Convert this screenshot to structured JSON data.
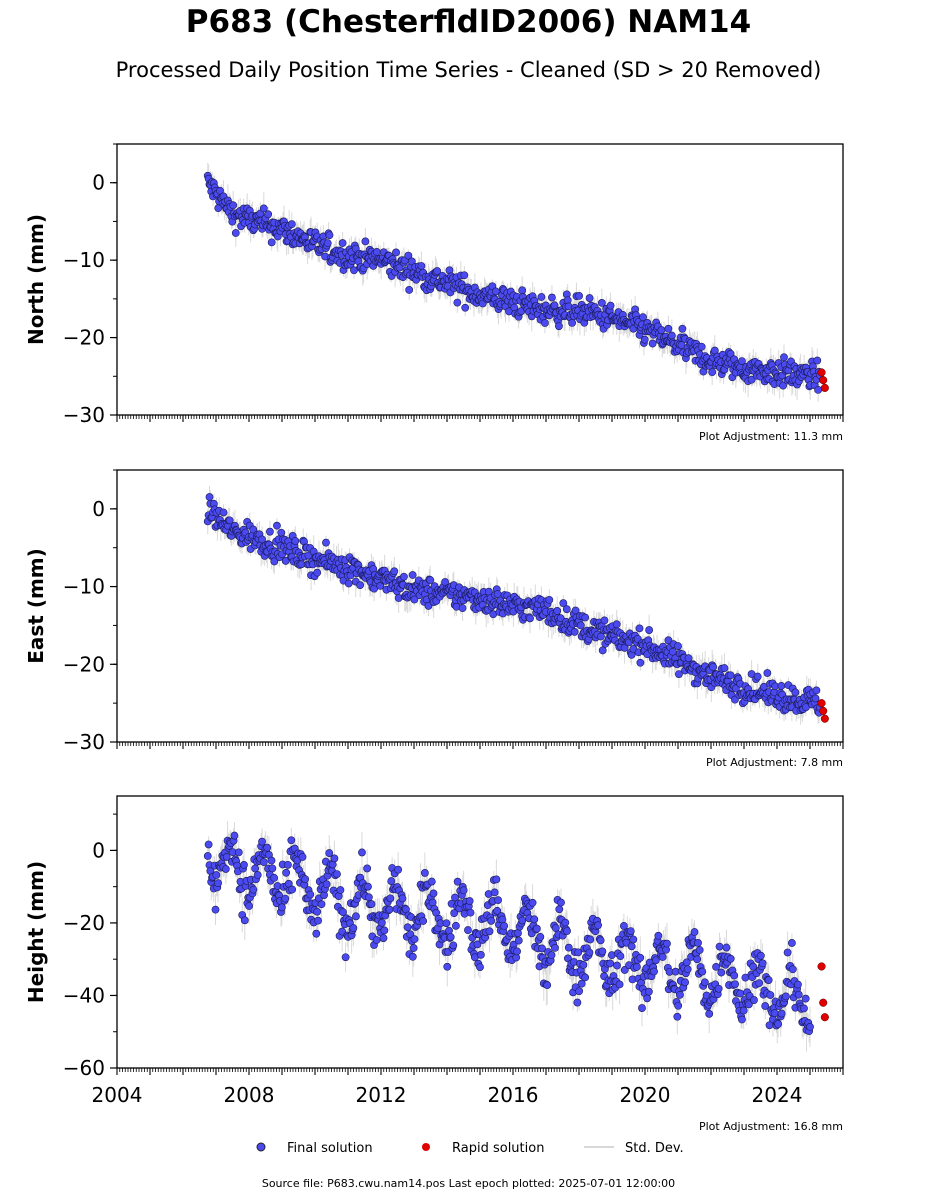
{
  "title": "P683 (ChesterfldID2006) NAM14",
  "subtitle": "Processed Daily Position Time Series - Cleaned (SD > 20 Removed)",
  "legend": {
    "final": "Final solution",
    "rapid": "Rapid solution",
    "std": "Std. Dev."
  },
  "source_text": "Source file: P683.cwu.nam14.pos  Last epoch plotted: 2025-07-01 12:00:00",
  "colors": {
    "final": "#4a4af0",
    "rapid": "#e00000",
    "std": "#999999"
  },
  "chart_data": [
    {
      "type": "scatter",
      "ylabel": "North (mm)",
      "adjustment": "Plot Adjustment: 11.3 mm",
      "xlim": [
        2004,
        2026
      ],
      "ylim": [
        -30,
        5
      ],
      "yticks": [
        0,
        -10,
        -20,
        -30
      ],
      "ytick_labels": [
        "0",
        "−10",
        "−20",
        "−30"
      ],
      "final": {
        "x": [
          2006.75,
          2007.0,
          2007.5,
          2008.0,
          2009.0,
          2010.0,
          2011.0,
          2012.0,
          2013.0,
          2014.0,
          2015.0,
          2016.0,
          2017.0,
          2018.0,
          2019.0,
          2020.0,
          2021.0,
          2022.0,
          2023.0,
          2024.0,
          2025.0,
          2025.3
        ],
        "y": [
          0.0,
          -1.5,
          -4.0,
          -4.8,
          -6.0,
          -8.0,
          -9.5,
          -10.0,
          -11.5,
          -13.0,
          -14.5,
          -15.5,
          -16.5,
          -16.5,
          -17.5,
          -19.0,
          -21.0,
          -23.0,
          -24.0,
          -24.5,
          -25.0,
          -25.0
        ]
      },
      "rapid": {
        "x": [
          2025.35,
          2025.4,
          2025.45
        ],
        "y": [
          -24.5,
          -25.5,
          -26.5
        ]
      }
    },
    {
      "type": "scatter",
      "ylabel": "East (mm)",
      "adjustment": "Plot Adjustment: 7.8 mm",
      "xlim": [
        2004,
        2026
      ],
      "ylim": [
        -30,
        5
      ],
      "yticks": [
        0,
        -10,
        -20,
        -30
      ],
      "ytick_labels": [
        "0",
        "−10",
        "−20",
        "−30"
      ],
      "final": {
        "x": [
          2006.75,
          2007.0,
          2007.5,
          2008.0,
          2009.0,
          2010.0,
          2011.0,
          2012.0,
          2013.0,
          2014.0,
          2015.0,
          2016.0,
          2017.0,
          2018.0,
          2019.0,
          2020.0,
          2021.0,
          2022.0,
          2023.0,
          2024.0,
          2025.0,
          2025.3
        ],
        "y": [
          0.0,
          -1.0,
          -3.0,
          -3.5,
          -5.0,
          -6.5,
          -7.5,
          -9.0,
          -10.5,
          -11.0,
          -11.5,
          -12.5,
          -13.0,
          -15.0,
          -16.5,
          -17.5,
          -19.5,
          -21.5,
          -23.0,
          -24.0,
          -24.8,
          -25.0
        ]
      },
      "rapid": {
        "x": [
          2025.35,
          2025.4,
          2025.45
        ],
        "y": [
          -25.0,
          -26.0,
          -27.0
        ]
      }
    },
    {
      "type": "scatter",
      "ylabel": "Height (mm)",
      "adjustment": "Plot Adjustment: 16.8 mm",
      "xlim": [
        2004,
        2026
      ],
      "ylim": [
        -60,
        15
      ],
      "yticks": [
        0,
        -20,
        -40,
        -60
      ],
      "ytick_labels": [
        "0",
        "−20",
        "−40",
        "−60"
      ],
      "xticks": [
        2004,
        2008,
        2012,
        2016,
        2020,
        2024
      ],
      "xtick_labels": [
        "2004",
        "2008",
        "2012",
        "2016",
        "2020",
        "2024"
      ],
      "final": {
        "x": [
          2006.75,
          2007.0,
          2008.0,
          2009.0,
          2010.0,
          2011.0,
          2012.0,
          2013.0,
          2014.0,
          2015.0,
          2016.0,
          2017.0,
          2018.0,
          2019.0,
          2020.0,
          2021.0,
          2022.0,
          2023.0,
          2024.0,
          2025.0
        ],
        "y": [
          2.0,
          -3.0,
          -6.0,
          -8.0,
          -12.0,
          -14.0,
          -16.0,
          -17.0,
          -19.0,
          -20.0,
          -21.0,
          -26.0,
          -28.0,
          -30.0,
          -32.0,
          -33.0,
          -34.0,
          -36.0,
          -40.0,
          -42.0
        ]
      },
      "rapid": {
        "x": [
          2025.35,
          2025.4,
          2025.45
        ],
        "y": [
          -32.0,
          -42.0,
          -46.0
        ]
      }
    }
  ]
}
